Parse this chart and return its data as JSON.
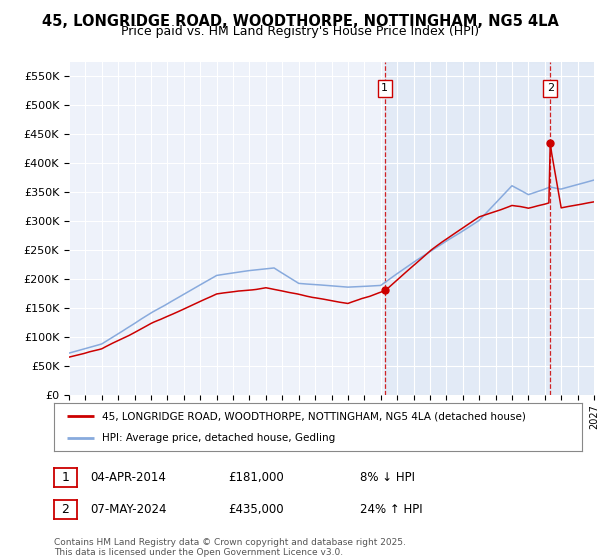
{
  "title": "45, LONGRIDGE ROAD, WOODTHORPE, NOTTINGHAM, NG5 4LA",
  "subtitle": "Price paid vs. HM Land Registry's House Price Index (HPI)",
  "ylabel_ticks": [
    "£0",
    "£50K",
    "£100K",
    "£150K",
    "£200K",
    "£250K",
    "£300K",
    "£350K",
    "£400K",
    "£450K",
    "£500K",
    "£550K"
  ],
  "ytick_values": [
    0,
    50000,
    100000,
    150000,
    200000,
    250000,
    300000,
    350000,
    400000,
    450000,
    500000,
    550000
  ],
  "ylim": [
    0,
    575000
  ],
  "x_start_year": 1995,
  "x_end_year": 2027,
  "background_color": "#ffffff",
  "plot_bg_color": "#eef2fa",
  "grid_color": "#ffffff",
  "red_line_color": "#cc0000",
  "blue_line_color": "#88aadd",
  "shade_color": "#dde8f5",
  "marker1_year": 2014.25,
  "marker1_price": 181000,
  "marker1_date_label": "04-APR-2014",
  "marker1_hpi_text": "8% ↓ HPI",
  "marker2_year": 2024.33,
  "marker2_price": 435000,
  "marker2_date_label": "07-MAY-2024",
  "marker2_hpi_text": "24% ↑ HPI",
  "legend_line1": "45, LONGRIDGE ROAD, WOODTHORPE, NOTTINGHAM, NG5 4LA (detached house)",
  "legend_line2": "HPI: Average price, detached house, Gedling",
  "footnote": "Contains HM Land Registry data © Crown copyright and database right 2025.\nThis data is licensed under the Open Government Licence v3.0."
}
